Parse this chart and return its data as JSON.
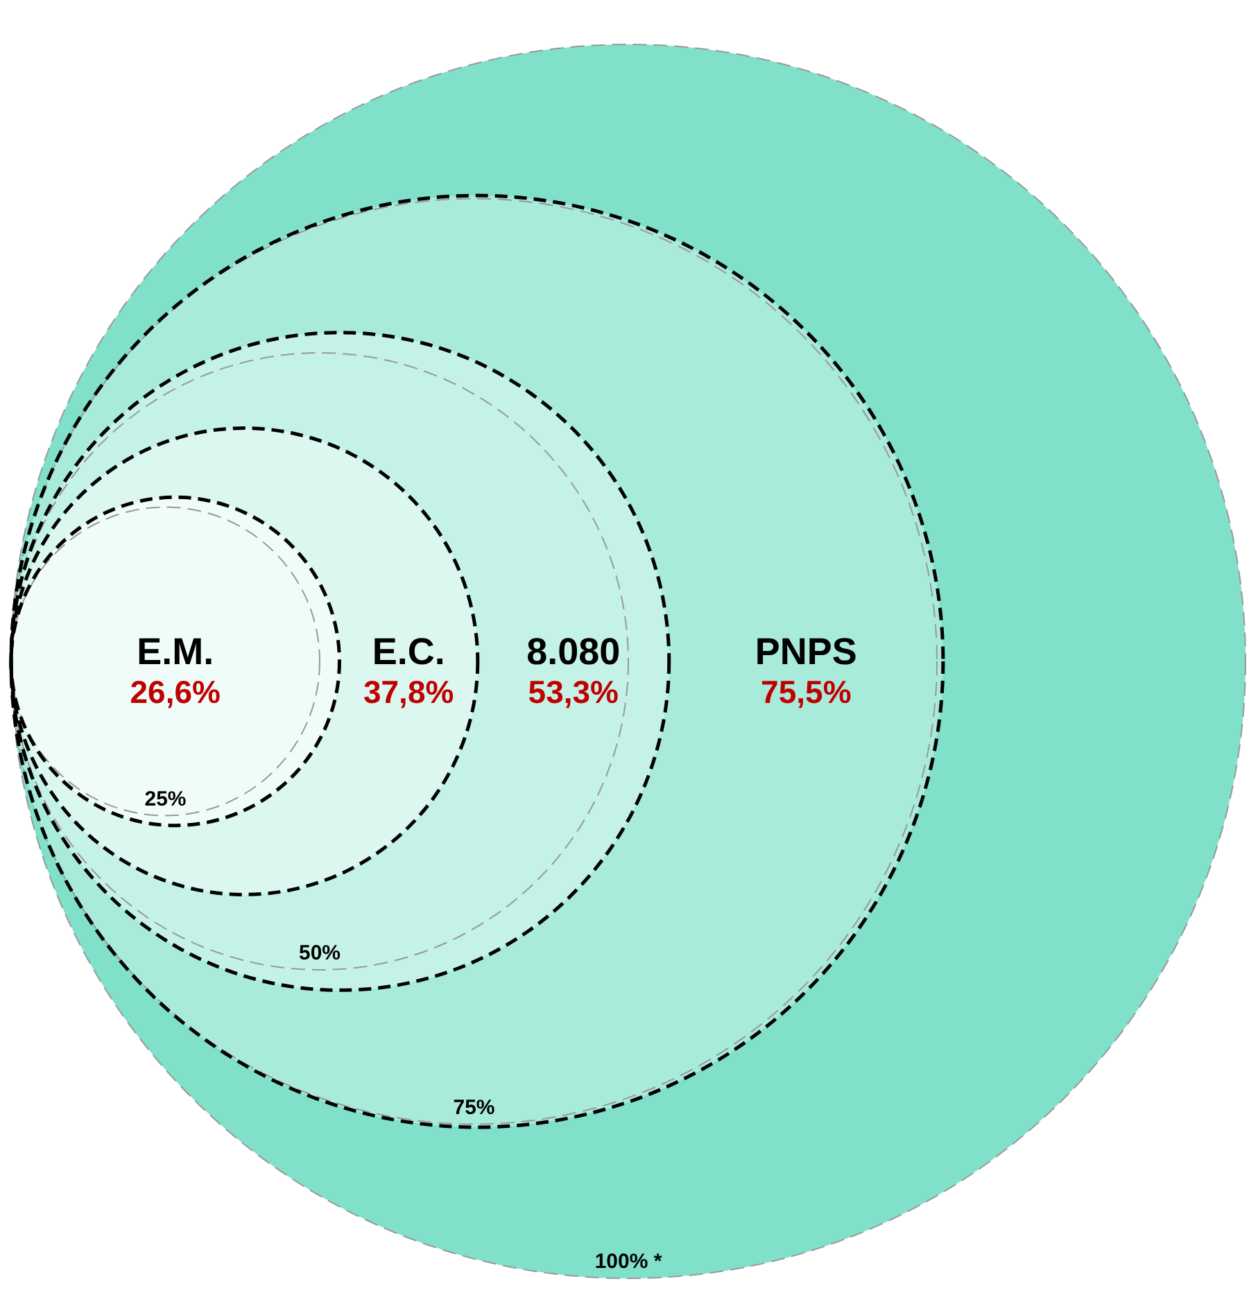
{
  "chart_data": {
    "type": "other",
    "categories": [
      "E.M.",
      "E.C.",
      "8.080",
      "PNPS"
    ],
    "values": [
      26.6,
      37.8,
      53.3,
      75.5
    ],
    "value_labels": [
      "26,6%",
      "37,8%",
      "53,3%",
      "75,5%"
    ],
    "colors": [
      "#f0fcf9",
      "#dcf7f0",
      "#c5f2e6",
      "#a9ebdb"
    ],
    "color": "#80e0ca",
    "annotations": [
      "25%",
      "50%",
      "75%",
      "100% *"
    ]
  }
}
